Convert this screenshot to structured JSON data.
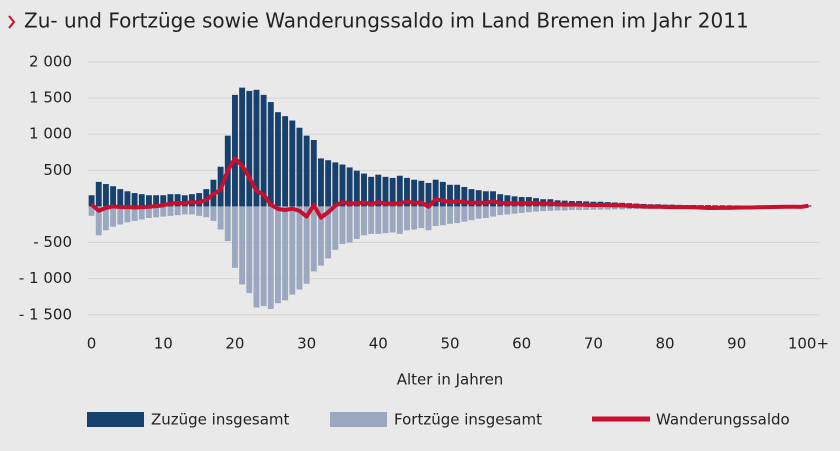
{
  "chart_data": {
    "type": "bar",
    "title": "Zu- und Fortzüge sowie Wanderungssaldo im Land Bremen im Jahr 2011",
    "x_label": "Alter in Jahren",
    "x": [
      0,
      1,
      2,
      3,
      4,
      5,
      6,
      7,
      8,
      9,
      10,
      11,
      12,
      13,
      14,
      15,
      16,
      17,
      18,
      19,
      20,
      21,
      22,
      23,
      24,
      25,
      26,
      27,
      28,
      29,
      30,
      31,
      32,
      33,
      34,
      35,
      36,
      37,
      38,
      39,
      40,
      41,
      42,
      43,
      44,
      45,
      46,
      47,
      48,
      49,
      50,
      51,
      52,
      53,
      54,
      55,
      56,
      57,
      58,
      59,
      60,
      61,
      62,
      63,
      64,
      65,
      66,
      67,
      68,
      69,
      70,
      71,
      72,
      73,
      74,
      75,
      76,
      77,
      78,
      79,
      80,
      81,
      82,
      83,
      84,
      85,
      86,
      87,
      88,
      89,
      90,
      91,
      92,
      93,
      94,
      95,
      96,
      97,
      98,
      99,
      100
    ],
    "xlim": [
      -0.5,
      100.5
    ],
    "xticks": [
      0,
      10,
      20,
      30,
      40,
      50,
      60,
      70,
      80,
      90,
      {
        "value": 100,
        "label": "100+"
      }
    ],
    "ylim": [
      -1600,
      2000
    ],
    "yticks": [
      {
        "value": 2000,
        "label": "2 000"
      },
      {
        "value": 1500,
        "label": "1 500"
      },
      {
        "value": 1000,
        "label": "1 000"
      },
      500,
      {
        "value": -500,
        "label": "- 500"
      },
      {
        "value": -1000,
        "label": "- 1 000"
      },
      {
        "value": -1500,
        "label": "- 1 500"
      }
    ],
    "grid": true,
    "series": [
      {
        "name": "Zuzüge insgesamt",
        "color": "#17406d",
        "type": "bar",
        "values": [
          155,
          340,
          310,
          280,
          240,
          210,
          185,
          170,
          155,
          155,
          155,
          170,
          170,
          155,
          170,
          185,
          240,
          370,
          550,
          980,
          1545,
          1645,
          1600,
          1615,
          1545,
          1445,
          1305,
          1250,
          1190,
          1090,
          980,
          920,
          665,
          640,
          610,
          580,
          540,
          495,
          455,
          410,
          440,
          410,
          395,
          425,
          395,
          370,
          355,
          325,
          370,
          340,
          300,
          300,
          270,
          240,
          225,
          210,
          210,
          170,
          155,
          140,
          130,
          130,
          115,
          100,
          100,
          85,
          80,
          75,
          75,
          70,
          65,
          65,
          60,
          55,
          50,
          45,
          40,
          35,
          30,
          30,
          25,
          25,
          22,
          20,
          20,
          18,
          18,
          16,
          16,
          15,
          14,
          13,
          12,
          12,
          11,
          10,
          10,
          9,
          8,
          8,
          15
        ]
      },
      {
        "name": "Fortzüge insgesamt",
        "color": "#9ba8bf",
        "type": "bar",
        "values": [
          -130,
          -400,
          -330,
          -280,
          -250,
          -220,
          -200,
          -180,
          -160,
          -150,
          -140,
          -130,
          -120,
          -110,
          -110,
          -130,
          -150,
          -200,
          -320,
          -480,
          -850,
          -1080,
          -1200,
          -1400,
          -1380,
          -1420,
          -1340,
          -1300,
          -1220,
          -1150,
          -1070,
          -900,
          -820,
          -720,
          -600,
          -520,
          -500,
          -450,
          -400,
          -380,
          -380,
          -370,
          -360,
          -380,
          -330,
          -320,
          -300,
          -330,
          -270,
          -260,
          -240,
          -230,
          -210,
          -190,
          -170,
          -160,
          -140,
          -120,
          -110,
          -100,
          -90,
          -80,
          -70,
          -65,
          -60,
          -55,
          -55,
          -50,
          -50,
          -48,
          -45,
          -45,
          -42,
          -40,
          -40,
          -38,
          -36,
          -35,
          -34,
          -33,
          -32,
          -35,
          -30,
          -30,
          -32,
          -34,
          -40,
          -38,
          -36,
          -34,
          -30,
          -28,
          -26,
          -24,
          -20,
          -18,
          -16,
          -14,
          -12,
          -14,
          -5
        ]
      },
      {
        "name": "Wanderungssaldo",
        "color": "#c8102e",
        "type": "line",
        "values": [
          25,
          -60,
          -20,
          0,
          -10,
          -10,
          -15,
          -10,
          -5,
          5,
          15,
          40,
          50,
          45,
          60,
          55,
          90,
          170,
          230,
          500,
          665,
          565,
          400,
          215,
          165,
          25,
          -35,
          -50,
          -30,
          -60,
          -140,
          20,
          -155,
          -80,
          10,
          60,
          40,
          45,
          55,
          30,
          60,
          40,
          35,
          45,
          65,
          50,
          55,
          -5,
          100,
          80,
          60,
          70,
          60,
          50,
          55,
          50,
          70,
          50,
          45,
          40,
          40,
          50,
          45,
          35,
          40,
          30,
          25,
          25,
          25,
          22,
          20,
          20,
          18,
          15,
          15,
          7,
          4,
          0,
          -4,
          -3,
          -7,
          -10,
          -8,
          -10,
          -12,
          -16,
          -22,
          -22,
          -20,
          -19,
          -16,
          -15,
          -14,
          -12,
          -9,
          -8,
          -6,
          -5,
          -4,
          -6,
          10
        ]
      }
    ]
  }
}
